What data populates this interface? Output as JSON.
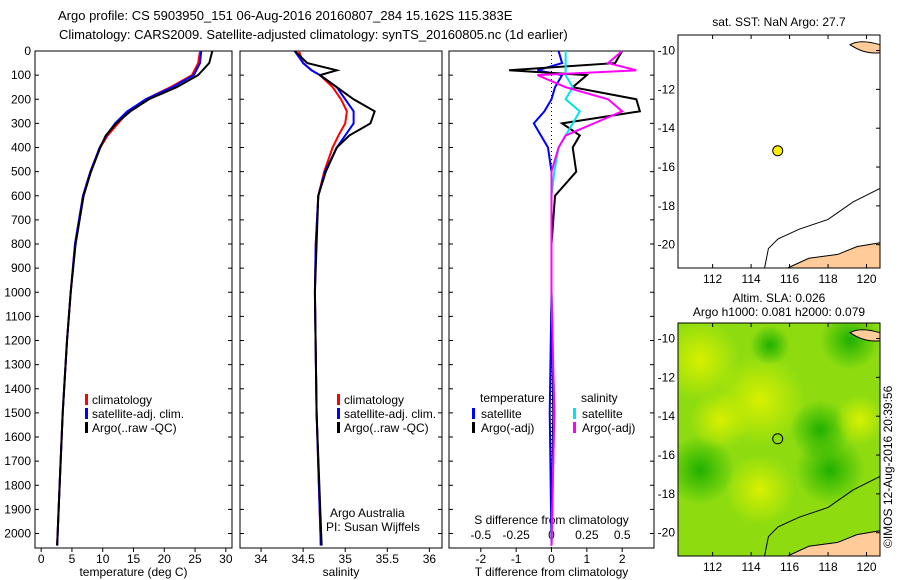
{
  "title_line1": "Argo profile: CS 5903950_151 06-Aug-2016 20160807_284 15.162S 115.383E",
  "title_line2": "Climatology: CARS2009. Satellite-adjusted climatology: synTS_20160805.nc (1d earlier)",
  "side_label": "©IMOS 12-Aug-2016 20:39:56",
  "colors": {
    "climatology": "#ff0000",
    "satellite": "#0000ff",
    "argo": "#000000",
    "sal_satellite": "#00e5ee",
    "sal_argo": "#ff00ff",
    "land": "#ffcc99",
    "float": "#ffee00"
  },
  "chart_data": [
    {
      "type": "line",
      "name": "temperature",
      "xlabel": "temperature (deg C)",
      "xlim": [
        -1,
        31
      ],
      "xticks": [
        0,
        5,
        10,
        15,
        20,
        25,
        30
      ],
      "ylim": [
        2060,
        0
      ],
      "yticks": [
        0,
        100,
        200,
        300,
        400,
        500,
        600,
        700,
        800,
        900,
        1000,
        1100,
        1200,
        1300,
        1400,
        1500,
        1600,
        1700,
        1800,
        1900,
        2000
      ],
      "depth": [
        0,
        50,
        100,
        150,
        200,
        250,
        300,
        350,
        400,
        500,
        600,
        800,
        1000,
        1200,
        1500,
        1800,
        2050
      ],
      "series": [
        {
          "name": "climatology",
          "values": [
            25.8,
            25.5,
            24.5,
            21,
            17,
            14.2,
            12.5,
            10.8,
            9.6,
            8,
            6.8,
            5.5,
            4.8,
            4.2,
            3.5,
            3,
            2.6
          ]
        },
        {
          "name": "satellite-adj. clim.",
          "values": [
            26,
            25.8,
            24.8,
            21.3,
            17,
            14,
            12,
            10.6,
            9.5,
            8,
            6.8,
            5.5,
            4.8,
            4.2,
            3.5,
            3,
            2.6
          ]
        },
        {
          "name": "Argo(..raw -QC)",
          "values": [
            27.8,
            27.3,
            25.5,
            22,
            17.5,
            14.5,
            12.2,
            10.5,
            9.6,
            8.1,
            6.9,
            5.6,
            4.8,
            4.2,
            3.5,
            3,
            2.6
          ]
        }
      ]
    },
    {
      "type": "line",
      "name": "salinity",
      "xlabel": "salinity",
      "xlim": [
        33.75,
        36.15
      ],
      "xticks": [
        34,
        34.5,
        35,
        35.5,
        36
      ],
      "depth": [
        0,
        50,
        80,
        100,
        150,
        200,
        250,
        300,
        350,
        400,
        500,
        600,
        800,
        1000,
        1500,
        2050
      ],
      "series": [
        {
          "name": "climatology",
          "values": [
            34.45,
            34.5,
            34.6,
            34.7,
            34.85,
            34.95,
            35.02,
            35.0,
            34.92,
            34.85,
            34.75,
            34.68,
            34.65,
            34.64,
            34.66,
            34.71
          ]
        },
        {
          "name": "satellite-adj. clim.",
          "values": [
            34.4,
            34.5,
            34.6,
            34.7,
            34.9,
            35.0,
            35.1,
            35.1,
            35.0,
            34.9,
            34.76,
            34.68,
            34.65,
            34.64,
            34.66,
            34.71
          ]
        },
        {
          "name": "Argo(..raw -QC)",
          "values": [
            34.4,
            34.55,
            34.9,
            34.7,
            34.9,
            35.1,
            35.35,
            35.3,
            35.05,
            34.9,
            34.77,
            34.68,
            34.66,
            34.64,
            34.66,
            34.72
          ]
        }
      ]
    },
    {
      "type": "line",
      "name": "difference",
      "xlabel": "T difference from climatology",
      "x2label": "S difference from climatology",
      "xlim": [
        -2.9,
        2.9
      ],
      "xticks": [
        -2,
        -1,
        0,
        1,
        2
      ],
      "x2ticks": [
        -0.5,
        -0.25,
        0,
        0.25,
        0.5
      ],
      "depth": [
        0,
        50,
        80,
        100,
        150,
        200,
        250,
        300,
        350,
        400,
        500,
        600,
        800,
        1000,
        1500,
        2050
      ],
      "series": [
        {
          "name": "temperature satellite",
          "values": [
            0.2,
            0.3,
            -0.4,
            0.3,
            0.1,
            0,
            -0.2,
            -0.5,
            -0.3,
            -0.1,
            0,
            0,
            0,
            0,
            -0.05,
            0
          ]
        },
        {
          "name": "temperature Argo(-adj)",
          "values": [
            2,
            1.8,
            -1.2,
            1,
            0.6,
            2.4,
            2.5,
            0.3,
            0.8,
            0.6,
            0.7,
            0.1,
            0,
            0,
            0.05,
            0
          ]
        },
        {
          "name": "salinity satellite",
          "values": [
            0.1,
            0.1,
            0.1,
            0.1,
            0.15,
            0.1,
            0.2,
            0.15,
            0.1,
            0.05,
            0.02,
            0,
            0,
            0,
            0.02,
            0
          ]
        },
        {
          "name": "salinity Argo(-adj)",
          "values": [
            0.5,
            0.4,
            0.6,
            -0.1,
            0.1,
            0.4,
            0.5,
            0.3,
            0.1,
            0.05,
            0,
            0,
            0,
            0,
            0.02,
            0
          ]
        }
      ]
    },
    {
      "type": "scatter",
      "name": "sst-map",
      "title": "sat. SST: NaN Argo: 27.7",
      "xlim": [
        110.2,
        120.7
      ],
      "ylim": [
        -21.2,
        -9.2
      ],
      "xticks": [
        112,
        114,
        116,
        118,
        120
      ],
      "yticks": [
        -10,
        -12,
        -14,
        -16,
        -18,
        -20
      ],
      "point": [
        115.383,
        -15.162
      ]
    },
    {
      "type": "heatmap",
      "name": "sla-map",
      "title1": "Altim. SLA: 0.026",
      "title2": "Argo h1000: 0.081 h2000: 0.079",
      "xlim": [
        110.2,
        120.7
      ],
      "ylim": [
        -21.2,
        -9.2
      ],
      "xticks": [
        112,
        114,
        116,
        118,
        120
      ],
      "yticks": [
        -10,
        -12,
        -14,
        -16,
        -18,
        -20
      ],
      "point": [
        115.383,
        -15.162
      ]
    }
  ],
  "legend1": {
    "items": [
      "climatology",
      "satellite-adj. clim.",
      "Argo(..raw -QC)"
    ]
  },
  "legend3": {
    "temp_header": "temperature",
    "sal_header": "salinity",
    "temp_items": [
      "satellite",
      "Argo(-adj)"
    ],
    "sal_items": [
      "satellite",
      "Argo(-adj)"
    ]
  },
  "credit": {
    "line1": "Argo Australia",
    "line2": "PI: Susan Wijffels"
  }
}
